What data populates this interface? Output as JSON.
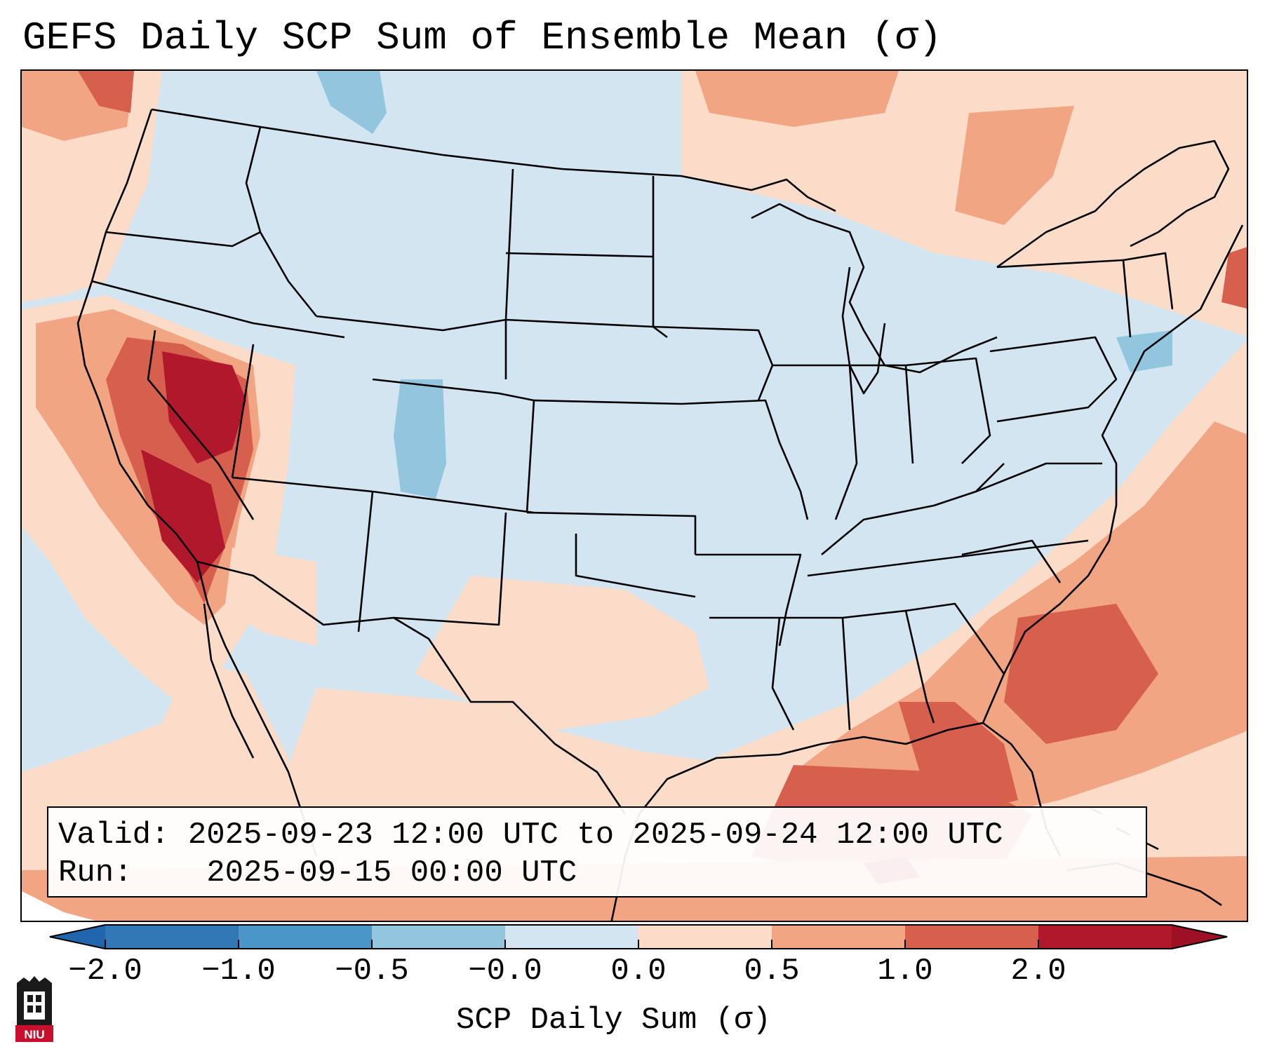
{
  "title": "GEFS Daily SCP Sum of Ensemble Mean (σ)",
  "info": {
    "valid_label": "Valid:",
    "valid_value": "2025-09-23 12:00 UTC to 2025-09-24 12:00 UTC",
    "run_label": "Run:",
    "run_value": "2025-09-15 00:00 UTC"
  },
  "colorbar": {
    "title": "SCP Daily Sum (σ)",
    "tick_labels": [
      "−2.0",
      "−1.0",
      "−0.5",
      "−0.0",
      "0.0",
      "0.5",
      "1.0",
      "2.0"
    ],
    "colors": [
      "#2f78b5",
      "#4a96c8",
      "#92c5de",
      "#d2e5f0",
      "#fbdcc9",
      "#f1a583",
      "#d6604d",
      "#b2182b"
    ],
    "extend": "both",
    "extend_low_color": "#2166ac",
    "extend_high_color": "#9e1024"
  },
  "logo": {
    "text": "NIU",
    "name": "Northern Illinois University"
  },
  "map_colors": {
    "neutral_blue": "#d2e5f0",
    "light_blue": "#92c5de",
    "light_red": "#fbdcc9",
    "mid_red": "#f1a583",
    "red": "#d6604d",
    "dark_red": "#b2182b"
  }
}
